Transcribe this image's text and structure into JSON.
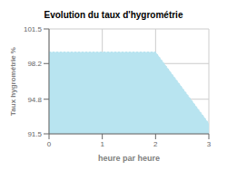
{
  "chart_data": {
    "type": "area",
    "title": "Evolution du taux d'hygrométrie",
    "xlabel": "heure par heure",
    "ylabel": "Taux hygrométrie %",
    "x": [
      0,
      2,
      3
    ],
    "values": [
      99.3,
      99.3,
      92.5
    ],
    "xlim": [
      0,
      3
    ],
    "ylim": [
      91.5,
      101.5
    ],
    "xticks": [
      0,
      1,
      2,
      3
    ],
    "yticks": [
      91.5,
      94.8,
      98.2,
      101.5
    ],
    "grid": true,
    "color": "#b8e4f0",
    "line_style": "dotted"
  }
}
